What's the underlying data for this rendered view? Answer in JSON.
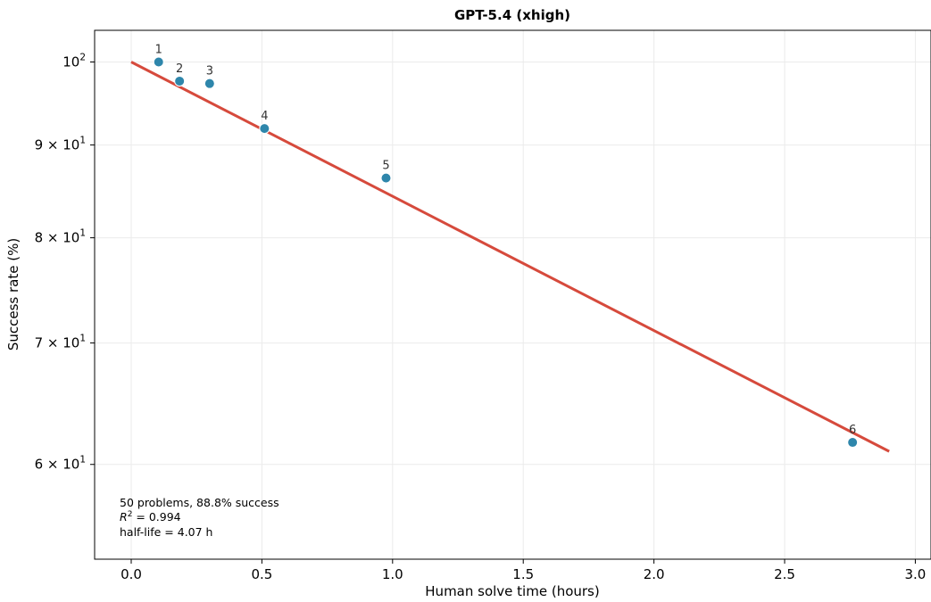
{
  "chart_data": {
    "type": "scatter",
    "title": "GPT-5.4 (xhigh)",
    "xlabel": "Human solve time (hours)",
    "ylabel": "Success rate (%)",
    "xlim": [
      -0.14,
      3.06
    ],
    "ylim": [
      53.2,
      104.1
    ],
    "yscale": "log",
    "grid": true,
    "x_ticks": [
      0.0,
      0.5,
      1.0,
      1.5,
      2.0,
      2.5,
      3.0
    ],
    "x_tick_labels": [
      "0.0",
      "0.5",
      "1.0",
      "1.5",
      "2.0",
      "2.5",
      "3.0"
    ],
    "y_ticks": [
      {
        "value": 100,
        "base": "10",
        "exp": "2"
      },
      {
        "value": 90,
        "base": "9 × 10",
        "exp": "1"
      },
      {
        "value": 80,
        "base": "8 × 10",
        "exp": "1"
      },
      {
        "value": 70,
        "base": "7 × 10",
        "exp": "1"
      },
      {
        "value": 60,
        "base": "6 × 10",
        "exp": "1"
      }
    ],
    "points": [
      {
        "label": "1",
        "x": 0.105,
        "y": 100.0
      },
      {
        "label": "2",
        "x": 0.185,
        "y": 97.6
      },
      {
        "label": "3",
        "x": 0.3,
        "y": 97.3
      },
      {
        "label": "4",
        "x": 0.51,
        "y": 91.9
      },
      {
        "label": "5",
        "x": 0.975,
        "y": 86.3
      },
      {
        "label": "6",
        "x": 2.76,
        "y": 61.7
      }
    ],
    "fit_line": {
      "x": [
        0.0,
        2.9
      ],
      "y": [
        100.0,
        61.0
      ]
    },
    "point_color": "#2e86ab",
    "line_color": "#d64a3c",
    "annotation": {
      "line1": "50 problems, 88.8% success",
      "r2_prefix": "R",
      "r2_exp": "2",
      "r2_value": " = 0.994",
      "line3": "half-life = 4.07 h"
    }
  }
}
